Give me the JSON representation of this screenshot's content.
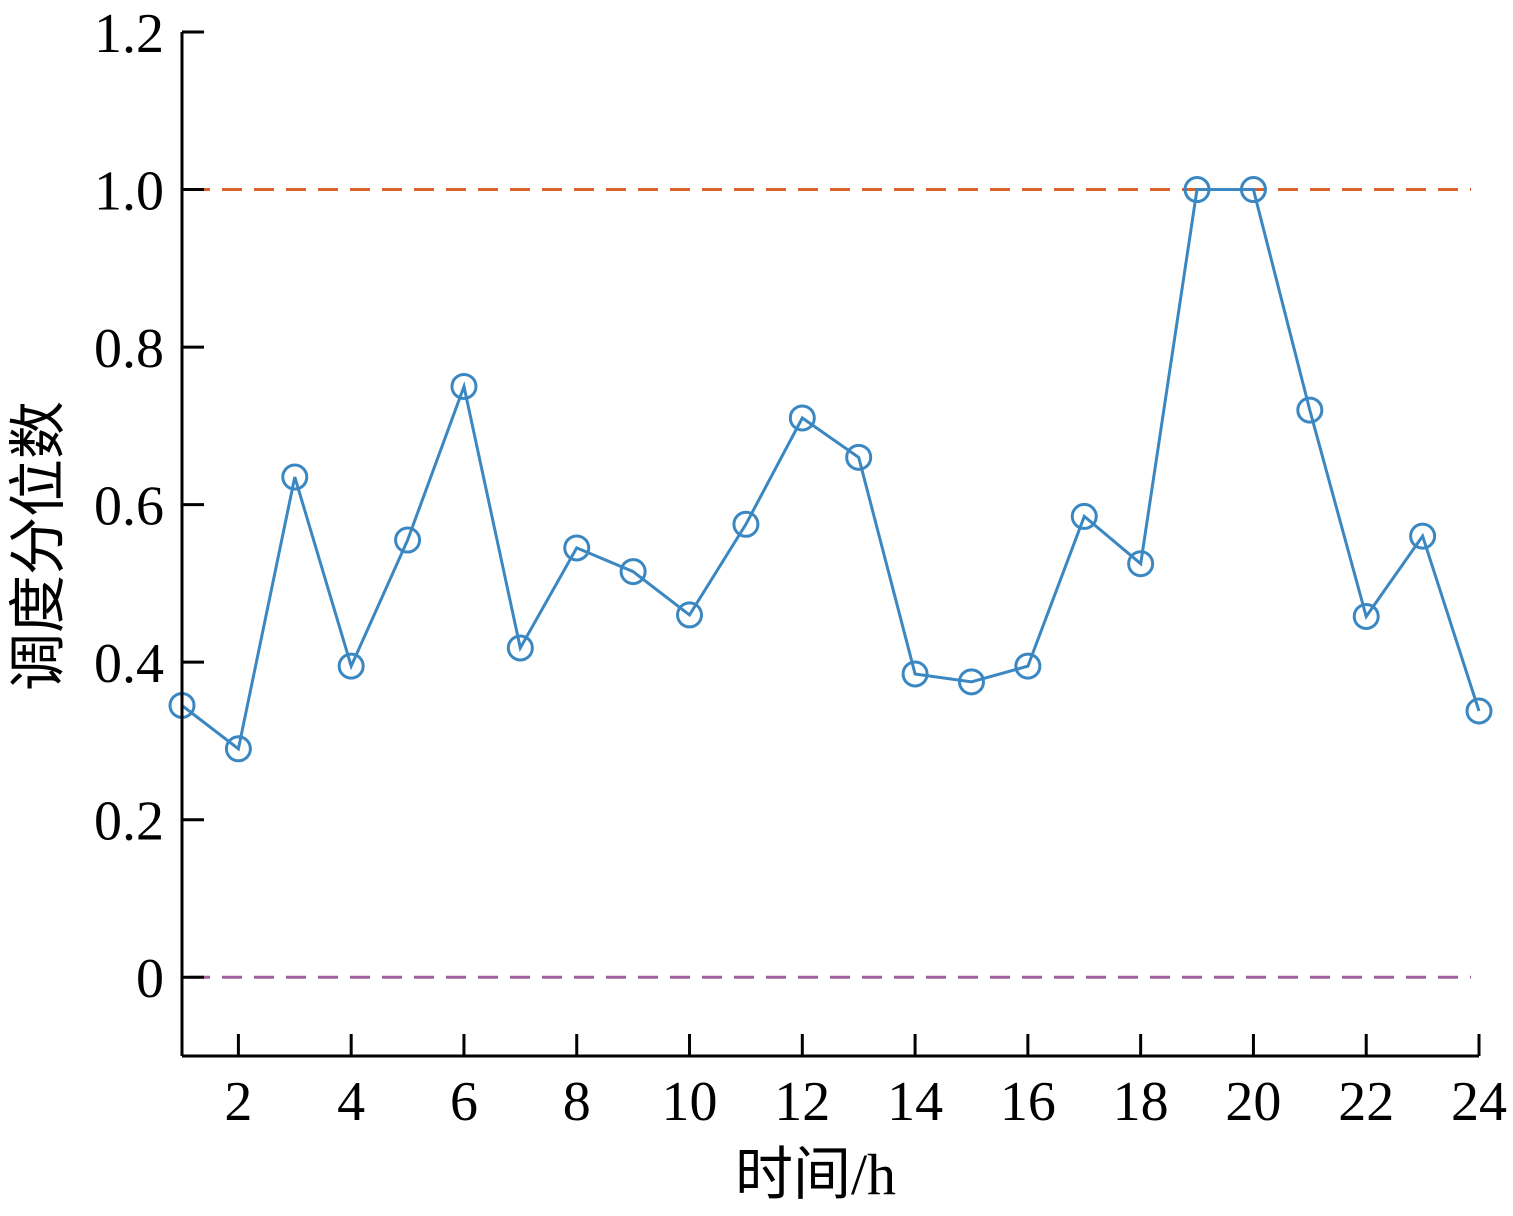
{
  "chart_data": {
    "type": "line",
    "xlabel": "时间/h",
    "ylabel": "调度分位数",
    "xlim": [
      1,
      24
    ],
    "ylim": [
      -0.1,
      1.2
    ],
    "x_ticks": [
      2,
      4,
      6,
      8,
      10,
      12,
      14,
      16,
      18,
      20,
      22,
      24
    ],
    "x_tick_labels": [
      "2",
      "4",
      "6",
      "8",
      "10",
      "12",
      "14",
      "16",
      "18",
      "20",
      "22",
      "24"
    ],
    "y_ticks": [
      0,
      0.2,
      0.4,
      0.6,
      0.8,
      1.0,
      1.2
    ],
    "y_tick_labels": [
      "0",
      "0.2",
      "0.4",
      "0.6",
      "0.8",
      "1.0",
      "1.2"
    ],
    "grid": false,
    "series": [
      {
        "color": "#3a87c2",
        "marker": "open-circle",
        "x": [
          1,
          2,
          3,
          4,
          5,
          6,
          7,
          8,
          9,
          10,
          11,
          12,
          13,
          14,
          15,
          16,
          17,
          18,
          19,
          20,
          21,
          22,
          23,
          24
        ],
        "values": [
          0.345,
          0.29,
          0.635,
          0.395,
          0.555,
          0.75,
          0.418,
          0.545,
          0.515,
          0.46,
          0.575,
          0.71,
          0.66,
          0.385,
          0.375,
          0.395,
          0.585,
          0.525,
          1.0,
          1.0,
          0.72,
          0.458,
          0.56,
          0.338
        ]
      }
    ],
    "reference_lines": [
      {
        "y": 1.0,
        "color": "#d9622b",
        "style": "dashed"
      },
      {
        "y": 0.0,
        "color": "#a0619e",
        "style": "dashed"
      }
    ]
  }
}
